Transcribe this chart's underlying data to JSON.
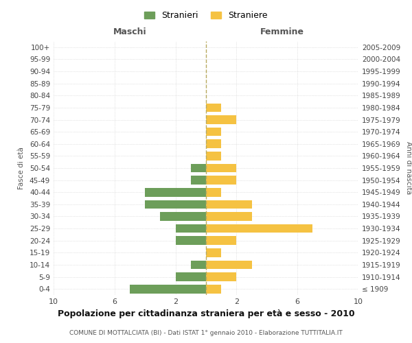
{
  "age_groups": [
    "100+",
    "95-99",
    "90-94",
    "85-89",
    "80-84",
    "75-79",
    "70-74",
    "65-69",
    "60-64",
    "55-59",
    "50-54",
    "45-49",
    "40-44",
    "35-39",
    "30-34",
    "25-29",
    "20-24",
    "15-19",
    "10-14",
    "5-9",
    "0-4"
  ],
  "birth_years": [
    "≤ 1909",
    "1910-1914",
    "1915-1919",
    "1920-1924",
    "1925-1929",
    "1930-1934",
    "1935-1939",
    "1940-1944",
    "1945-1949",
    "1950-1954",
    "1955-1959",
    "1960-1964",
    "1965-1969",
    "1970-1974",
    "1975-1979",
    "1980-1984",
    "1985-1989",
    "1990-1994",
    "1995-1999",
    "2000-2004",
    "2005-2009"
  ],
  "maschi": [
    0,
    0,
    0,
    0,
    0,
    0,
    0,
    0,
    0,
    0,
    1,
    1,
    4,
    4,
    3,
    2,
    2,
    0,
    1,
    2,
    5
  ],
  "femmine": [
    0,
    0,
    0,
    0,
    0,
    1,
    2,
    1,
    1,
    1,
    2,
    2,
    1,
    3,
    3,
    7,
    2,
    1,
    3,
    2,
    1
  ],
  "maschi_color": "#6d9e5a",
  "femmine_color": "#f5c242",
  "title": "Popolazione per cittadinanza straniera per età e sesso - 2010",
  "subtitle": "COMUNE DI MOTTALCIATA (BI) - Dati ISTAT 1° gennaio 2010 - Elaborazione TUTTITALIA.IT",
  "xlabel_left": "Maschi",
  "xlabel_right": "Femmine",
  "ylabel_left": "Fasce di età",
  "ylabel_right": "Anni di nascita",
  "legend_stranieri": "Stranieri",
  "legend_straniere": "Straniere",
  "background_color": "#ffffff",
  "grid_color": "#cccccc",
  "dashed_line_color": "#b8aa60"
}
